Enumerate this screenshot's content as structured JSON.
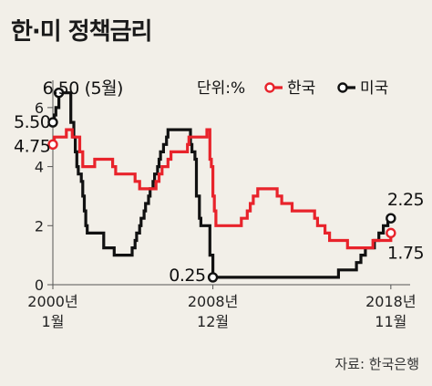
{
  "title": "한·미 정책금리",
  "source": "자료: 한국은행",
  "unit_label": "단위:%",
  "colors": {
    "korea": "#e8232b",
    "us": "#111111",
    "background": "#f2efe8"
  },
  "chart_data": {
    "type": "line",
    "title": "한·미 정책금리",
    "ylabel": "",
    "xlabel": "",
    "ylim": [
      0,
      6.8
    ],
    "y_ticks": [
      0,
      2,
      4,
      6
    ],
    "x_ticks": [
      {
        "date": "2000-01",
        "line1": "2000년",
        "line2": "1월"
      },
      {
        "date": "2008-12",
        "line1": "2008년",
        "line2": "12월"
      },
      {
        "date": "2018-11",
        "line1": "2018년",
        "line2": "11월"
      }
    ],
    "legend": "top-right",
    "series": [
      {
        "name": "한국",
        "color": "#e8232b",
        "points": [
          [
            "2000-01",
            4.75
          ],
          [
            "2000-02",
            5.0
          ],
          [
            "2000-10",
            5.25
          ],
          [
            "2001-02",
            5.0
          ],
          [
            "2001-07",
            4.5
          ],
          [
            "2001-09",
            4.0
          ],
          [
            "2002-05",
            4.25
          ],
          [
            "2003-05",
            4.0
          ],
          [
            "2003-07",
            3.75
          ],
          [
            "2004-08",
            3.5
          ],
          [
            "2004-11",
            3.25
          ],
          [
            "2005-10",
            3.5
          ],
          [
            "2005-12",
            3.75
          ],
          [
            "2006-02",
            4.0
          ],
          [
            "2006-06",
            4.25
          ],
          [
            "2006-08",
            4.5
          ],
          [
            "2007-07",
            4.75
          ],
          [
            "2007-08",
            5.0
          ],
          [
            "2008-08",
            5.25
          ],
          [
            "2008-10",
            4.25
          ],
          [
            "2008-11",
            4.0
          ],
          [
            "2008-12",
            3.0
          ],
          [
            "2009-01",
            2.5
          ],
          [
            "2009-02",
            2.0
          ],
          [
            "2010-07",
            2.25
          ],
          [
            "2010-11",
            2.5
          ],
          [
            "2011-01",
            2.75
          ],
          [
            "2011-03",
            3.0
          ],
          [
            "2011-06",
            3.25
          ],
          [
            "2012-07",
            3.0
          ],
          [
            "2012-10",
            2.75
          ],
          [
            "2013-05",
            2.5
          ],
          [
            "2014-08",
            2.25
          ],
          [
            "2014-10",
            2.0
          ],
          [
            "2015-03",
            1.75
          ],
          [
            "2015-06",
            1.5
          ],
          [
            "2016-06",
            1.25
          ],
          [
            "2017-11",
            1.5
          ],
          [
            "2018-11",
            1.75
          ]
        ]
      },
      {
        "name": "미국",
        "color": "#111111",
        "points": [
          [
            "2000-01",
            5.5
          ],
          [
            "2000-02",
            5.75
          ],
          [
            "2000-03",
            6.0
          ],
          [
            "2000-05",
            6.5
          ],
          [
            "2001-01",
            5.5
          ],
          [
            "2001-03",
            5.0
          ],
          [
            "2001-04",
            4.5
          ],
          [
            "2001-05",
            4.0
          ],
          [
            "2001-06",
            3.75
          ],
          [
            "2001-08",
            3.5
          ],
          [
            "2001-09",
            3.0
          ],
          [
            "2001-10",
            2.5
          ],
          [
            "2001-11",
            2.0
          ],
          [
            "2001-12",
            1.75
          ],
          [
            "2002-11",
            1.25
          ],
          [
            "2003-06",
            1.0
          ],
          [
            "2004-06",
            1.25
          ],
          [
            "2004-08",
            1.5
          ],
          [
            "2004-09",
            1.75
          ],
          [
            "2004-11",
            2.0
          ],
          [
            "2004-12",
            2.25
          ],
          [
            "2005-02",
            2.5
          ],
          [
            "2005-03",
            2.75
          ],
          [
            "2005-05",
            3.0
          ],
          [
            "2005-06",
            3.25
          ],
          [
            "2005-08",
            3.5
          ],
          [
            "2005-09",
            3.75
          ],
          [
            "2005-11",
            4.0
          ],
          [
            "2005-12",
            4.25
          ],
          [
            "2006-01",
            4.5
          ],
          [
            "2006-03",
            4.75
          ],
          [
            "2006-05",
            5.0
          ],
          [
            "2006-06",
            5.25
          ],
          [
            "2007-09",
            4.75
          ],
          [
            "2007-10",
            4.5
          ],
          [
            "2007-12",
            4.25
          ],
          [
            "2008-01",
            3.0
          ],
          [
            "2008-03",
            2.25
          ],
          [
            "2008-04",
            2.0
          ],
          [
            "2008-10",
            1.0
          ],
          [
            "2008-12",
            0.25
          ],
          [
            "2015-12",
            0.5
          ],
          [
            "2016-12",
            0.75
          ],
          [
            "2017-03",
            1.0
          ],
          [
            "2017-06",
            1.25
          ],
          [
            "2017-12",
            1.5
          ],
          [
            "2018-03",
            1.75
          ],
          [
            "2018-06",
            2.0
          ],
          [
            "2018-09",
            2.25
          ],
          [
            "2018-11",
            2.25
          ]
        ]
      }
    ],
    "annotations": [
      {
        "text": "6.50",
        "date": "2000-05",
        "value": 6.5,
        "series": "미국"
      },
      {
        "text": "(5월)",
        "date": "2000-05",
        "value": 6.5,
        "series": "미국"
      },
      {
        "text": "5.50",
        "date": "2000-01",
        "value": 5.5,
        "series": "미국"
      },
      {
        "text": "4.75",
        "date": "2000-01",
        "value": 4.75,
        "series": "한국"
      },
      {
        "text": "0.25",
        "date": "2008-12",
        "value": 0.25,
        "series": "미국"
      },
      {
        "text": "2.25",
        "date": "2018-11",
        "value": 2.25,
        "series": "미국"
      },
      {
        "text": "1.75",
        "date": "2018-11",
        "value": 1.75,
        "series": "한국"
      }
    ]
  }
}
